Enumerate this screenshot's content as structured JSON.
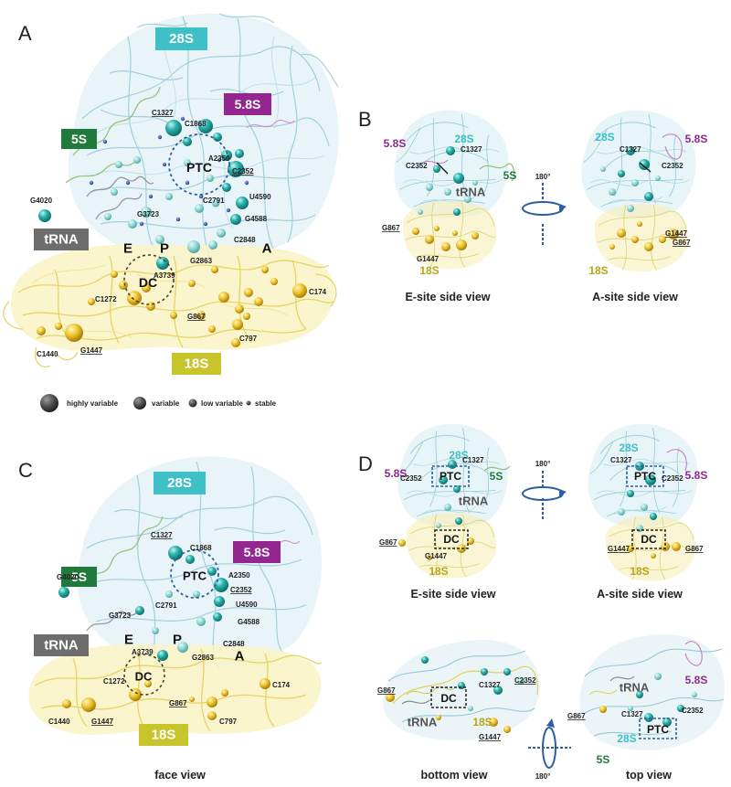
{
  "panels": {
    "a": "A",
    "b": "B",
    "c": "C",
    "d": "D"
  },
  "subunits": {
    "s28": "28S",
    "s58": "5.8S",
    "s5": "5S",
    "s18": "18S",
    "trna": "tRNA"
  },
  "centers": {
    "ptc": "PTC",
    "dc": "DC"
  },
  "sites": {
    "e": "E",
    "p": "P",
    "a": "A"
  },
  "residues_a": {
    "c1327": "C1327",
    "c1868": "C1868",
    "a2350": "A2350",
    "c2352": "C2352",
    "c2791": "C2791",
    "u4590": "U4590",
    "g4588": "G4588",
    "g4020": "G4020",
    "g3723": "G3723",
    "c2848": "C2848",
    "g2863": "G2863",
    "a3739": "A3739",
    "c1272": "C1272",
    "c174": "C174",
    "g867": "G867",
    "c797": "C797",
    "c1440": "C1440",
    "g1447": "G1447"
  },
  "legend": {
    "highly": "highly variable",
    "variable": "variable",
    "low": "low variable",
    "stable": "stable"
  },
  "views": {
    "e_side": "E-site side view",
    "a_side": "A-site side view",
    "face": "face view",
    "bottom": "bottom view",
    "top": "top view"
  },
  "rotation": "180°",
  "colors": {
    "lsu_ribbon": "#a9d3de",
    "ssu_ribbon": "#eee28a",
    "badge_28s": "#3ec0c6",
    "badge_58s": "#93278f",
    "badge_5s": "#1f7a3c",
    "badge_18s": "#c7c42c",
    "badge_trna": "#6d6d6d",
    "sphere_teal": "#1ea3a0",
    "sphere_yellow": "#e8b925",
    "ring": "#2f5e9e"
  }
}
